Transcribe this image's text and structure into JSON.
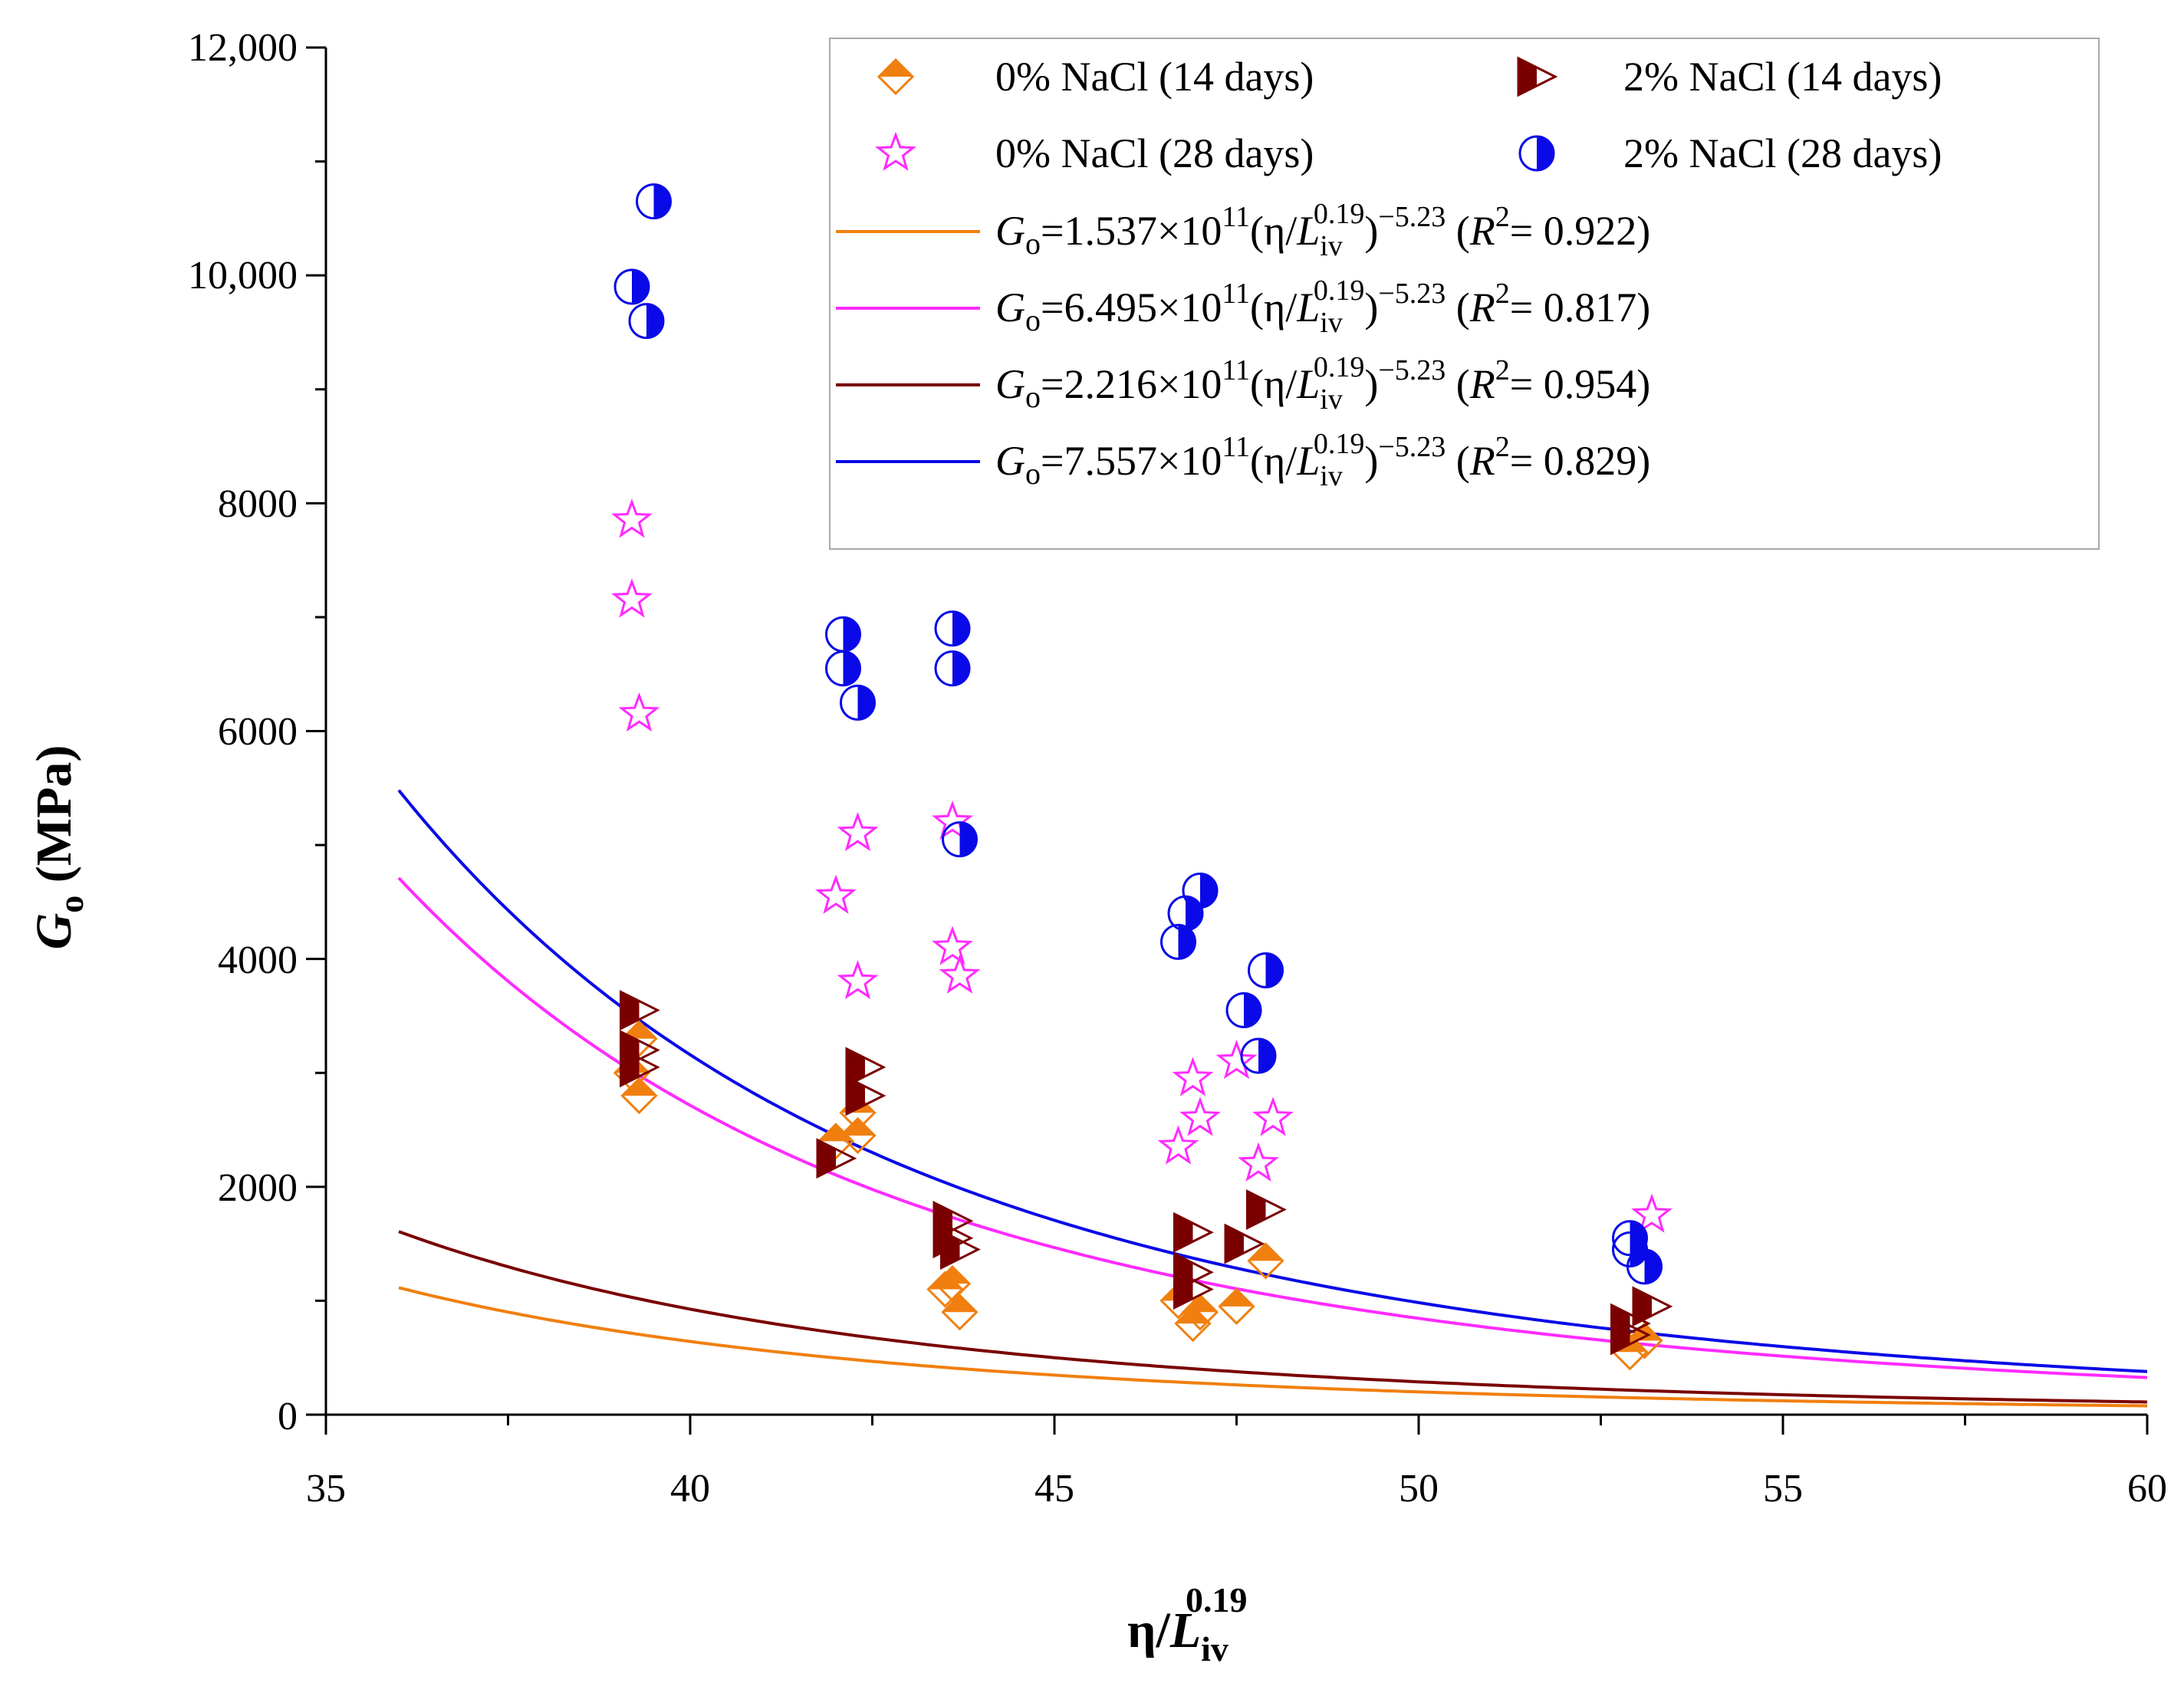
{
  "chart_data": {
    "type": "scatter",
    "title": "",
    "xlabel": {
      "main": "η/",
      "var": "L",
      "sub": "iv",
      "sup": "0.19"
    },
    "ylabel": {
      "var": "G",
      "sub": "o",
      "unit": " (MPa)"
    },
    "xlim": [
      35,
      60
    ],
    "ylim": [
      0,
      12000
    ],
    "x_ticks": [
      35,
      40,
      45,
      50,
      55,
      60
    ],
    "x_tick_labels": [
      "35",
      "40",
      "45",
      "50",
      "55",
      "60"
    ],
    "y_ticks": [
      0,
      2000,
      4000,
      6000,
      8000,
      10000,
      12000
    ],
    "y_tick_labels": [
      "0",
      "2000",
      "4000",
      "6000",
      "8000",
      "10,000",
      "12,000"
    ],
    "legend_position": "top-right",
    "series": [
      {
        "name": "0% NaCl (14 days)",
        "marker": "half-diamond",
        "color": "#f07f0f",
        "points": [
          [
            39.3,
            3300
          ],
          [
            39.2,
            3000
          ],
          [
            39.3,
            2800
          ],
          [
            42.0,
            2400
          ],
          [
            42.3,
            2650
          ],
          [
            42.3,
            2450
          ],
          [
            43.5,
            1100
          ],
          [
            43.6,
            1150
          ],
          [
            43.7,
            900
          ],
          [
            46.7,
            1000
          ],
          [
            46.9,
            800
          ],
          [
            47.0,
            900
          ],
          [
            47.5,
            950
          ],
          [
            47.9,
            1350
          ],
          [
            52.9,
            550
          ],
          [
            53.1,
            650
          ]
        ]
      },
      {
        "name": "2% NaCl (14 days)",
        "marker": "half-triangle",
        "color": "#7a0000",
        "points": [
          [
            39.3,
            3550
          ],
          [
            39.3,
            3200
          ],
          [
            39.3,
            3050
          ],
          [
            42.0,
            2250
          ],
          [
            42.4,
            3050
          ],
          [
            42.4,
            2800
          ],
          [
            43.6,
            1700
          ],
          [
            43.6,
            1550
          ],
          [
            43.7,
            1450
          ],
          [
            46.9,
            1600
          ],
          [
            46.9,
            1250
          ],
          [
            46.9,
            1100
          ],
          [
            47.6,
            1500
          ],
          [
            47.9,
            1800
          ],
          [
            52.9,
            800
          ],
          [
            52.9,
            700
          ],
          [
            53.2,
            950
          ]
        ]
      },
      {
        "name": "0% NaCl (28 days)",
        "marker": "star",
        "color": "#ff2bff",
        "points": [
          [
            39.2,
            7850
          ],
          [
            39.2,
            7150
          ],
          [
            39.3,
            6150
          ],
          [
            42.0,
            4550
          ],
          [
            42.3,
            5100
          ],
          [
            42.3,
            3800
          ],
          [
            43.6,
            5200
          ],
          [
            43.6,
            4100
          ],
          [
            43.7,
            3850
          ],
          [
            46.7,
            2350
          ],
          [
            46.9,
            2950
          ],
          [
            47.0,
            2600
          ],
          [
            47.5,
            3100
          ],
          [
            47.8,
            2200
          ],
          [
            48.0,
            2600
          ],
          [
            53.2,
            1750
          ]
        ]
      },
      {
        "name": "2% NaCl (28 days)",
        "marker": "half-circle",
        "color": "#0a0ae8",
        "points": [
          [
            39.2,
            9900
          ],
          [
            39.4,
            9600
          ],
          [
            39.5,
            10650
          ],
          [
            42.1,
            6850
          ],
          [
            42.1,
            6550
          ],
          [
            42.3,
            6250
          ],
          [
            43.6,
            6900
          ],
          [
            43.6,
            6550
          ],
          [
            43.7,
            5050
          ],
          [
            46.7,
            4150
          ],
          [
            46.8,
            4400
          ],
          [
            47.0,
            4600
          ],
          [
            47.6,
            3550
          ],
          [
            47.8,
            3150
          ],
          [
            47.9,
            3900
          ],
          [
            52.9,
            1450
          ],
          [
            52.9,
            1550
          ],
          [
            53.1,
            1300
          ]
        ]
      }
    ],
    "fits": [
      {
        "color": "#f07f0f",
        "coef_text": "1.537",
        "coefficient": 153700000000.0,
        "exponent": -5.23,
        "r2_text": "0.922",
        "x_start": 36
      },
      {
        "color": "#ff2bff",
        "coef_text": "6.495",
        "coefficient": 649500000000.0,
        "exponent": -5.23,
        "r2_text": "0.817",
        "x_start": 36
      },
      {
        "color": "#7a0000",
        "coef_text": "2.216",
        "coefficient": 221600000000.0,
        "exponent": -5.23,
        "r2_text": "0.954",
        "x_start": 36
      },
      {
        "color": "#0a0ae8",
        "coef_text": "7.557",
        "coefficient": 755700000000.0,
        "exponent": -5.23,
        "r2_text": "0.829",
        "x_start": 36
      }
    ],
    "fit_template": {
      "var": "G",
      "sub": "o",
      "times_ten": "×10",
      "ten_exp": "11",
      "paren_open": "(η/",
      "l_var": "L",
      "l_sub": "iv",
      "l_sup": "0.19",
      "paren_close": ")",
      "exp_text": "−5.23",
      "r_open": " (",
      "r_var": "R",
      "r_sup": "2",
      "r_eq": "= ",
      "r_close": ")"
    }
  }
}
